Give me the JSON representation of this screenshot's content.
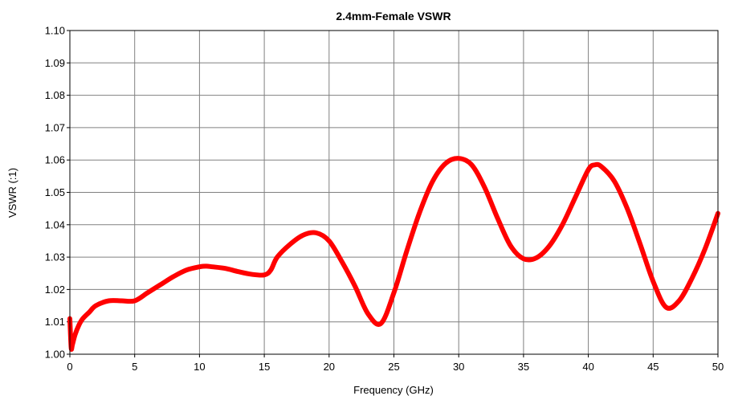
{
  "chart_data": {
    "type": "line",
    "title": "2.4mm-Female VSWR",
    "xlabel": "Frequency (GHz)",
    "ylabel": "VSWR (:1)",
    "xlim": [
      0,
      50
    ],
    "ylim": [
      1.0,
      1.1
    ],
    "x_ticks": [
      "0",
      "5",
      "10",
      "15",
      "20",
      "25",
      "30",
      "35",
      "40",
      "45",
      "50"
    ],
    "y_ticks": [
      "1.00",
      "1.01",
      "1.02",
      "1.03",
      "1.04",
      "1.05",
      "1.06",
      "1.07",
      "1.08",
      "1.09",
      "1.10"
    ],
    "grid": true,
    "series": [
      {
        "color": "#ff0000",
        "x": [
          0.0,
          0.1,
          0.2,
          0.4,
          0.7,
          1.0,
          1.5,
          2.0,
          3.0,
          4.0,
          5.0,
          6.0,
          7.0,
          8.0,
          9.0,
          10.0,
          10.5,
          11.0,
          12.0,
          13.0,
          14.0,
          15.0,
          15.5,
          16.0,
          17.0,
          18.0,
          19.0,
          20.0,
          21.0,
          22.0,
          23.0,
          24.0,
          25.0,
          26.0,
          27.0,
          28.0,
          29.0,
          30.0,
          31.0,
          32.0,
          33.0,
          34.0,
          35.0,
          36.0,
          37.0,
          38.0,
          39.0,
          40.0,
          40.5,
          41.0,
          42.0,
          43.0,
          44.0,
          45.0,
          46.0,
          47.0,
          48.0,
          49.0,
          50.0
        ],
        "y": [
          1.011,
          1.002,
          1.003,
          1.006,
          1.009,
          1.011,
          1.013,
          1.015,
          1.0165,
          1.0165,
          1.0165,
          1.019,
          1.0215,
          1.024,
          1.026,
          1.027,
          1.0272,
          1.027,
          1.0265,
          1.0255,
          1.0247,
          1.0245,
          1.026,
          1.03,
          1.034,
          1.0368,
          1.0375,
          1.035,
          1.0285,
          1.021,
          1.0125,
          1.0095,
          1.019,
          1.032,
          1.044,
          1.0535,
          1.059,
          1.0605,
          1.0585,
          1.0515,
          1.042,
          1.0335,
          1.0295,
          1.0298,
          1.0335,
          1.04,
          1.0485,
          1.057,
          1.0585,
          1.058,
          1.0535,
          1.045,
          1.034,
          1.0225,
          1.0145,
          1.0165,
          1.0235,
          1.0325,
          1.0435
        ]
      }
    ]
  }
}
